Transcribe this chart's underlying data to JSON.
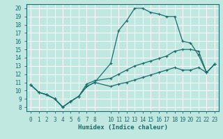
{
  "xlabel": "Humidex (Indice chaleur)",
  "bg_color": "#c0e8e0",
  "grid_color": "#b0d8d0",
  "line_color": "#1a6b6b",
  "xlim": [
    -0.5,
    23.5
  ],
  "ylim": [
    7.5,
    20.5
  ],
  "xticks": [
    0,
    1,
    2,
    3,
    4,
    5,
    6,
    7,
    8,
    10,
    11,
    12,
    13,
    14,
    15,
    16,
    17,
    18,
    19,
    20,
    21,
    22,
    23
  ],
  "yticks": [
    8,
    9,
    10,
    11,
    12,
    13,
    14,
    15,
    16,
    17,
    18,
    19,
    20
  ],
  "line1_x": [
    0,
    1,
    2,
    3,
    4,
    5,
    6,
    7,
    8,
    10,
    11,
    12,
    13,
    14,
    15,
    16,
    17,
    18,
    19,
    20,
    21,
    22,
    23
  ],
  "line1_y": [
    10.7,
    9.8,
    9.5,
    9.0,
    8.0,
    8.7,
    9.3,
    10.5,
    11.0,
    13.3,
    17.3,
    18.5,
    20.0,
    20.0,
    19.5,
    19.3,
    19.0,
    19.0,
    16.0,
    15.8,
    14.3,
    12.2,
    13.2
  ],
  "line2_x": [
    0,
    1,
    2,
    3,
    4,
    5,
    6,
    7,
    8,
    10,
    11,
    12,
    13,
    14,
    15,
    16,
    17,
    18,
    19,
    20,
    21,
    22,
    23
  ],
  "line2_y": [
    10.7,
    9.8,
    9.5,
    9.0,
    8.0,
    8.7,
    9.3,
    10.8,
    11.2,
    11.5,
    12.0,
    12.5,
    13.0,
    13.3,
    13.6,
    13.9,
    14.2,
    14.8,
    15.0,
    15.0,
    14.8,
    12.2,
    13.2
  ],
  "line3_x": [
    0,
    1,
    2,
    3,
    4,
    5,
    6,
    7,
    8,
    10,
    11,
    12,
    13,
    14,
    15,
    16,
    17,
    18,
    19,
    20,
    21,
    22,
    23
  ],
  "line3_y": [
    10.7,
    9.8,
    9.5,
    9.0,
    8.0,
    8.7,
    9.3,
    10.5,
    11.0,
    10.5,
    10.8,
    11.0,
    11.3,
    11.6,
    11.9,
    12.2,
    12.5,
    12.8,
    12.5,
    12.5,
    12.8,
    12.2,
    13.2
  ]
}
